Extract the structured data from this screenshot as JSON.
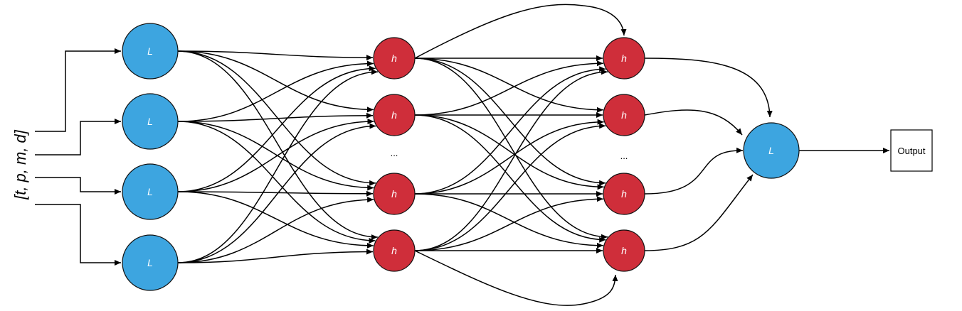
{
  "diagram": {
    "input_label": "[t, p, m, d]",
    "input_layer_node_label": "L",
    "hidden_layer_node_label": "h",
    "output_layer_node_label": "L",
    "ellipsis": "...",
    "output_box_label": "Output",
    "colors": {
      "blue_node": "#3da5e0",
      "red_node": "#cf2e3a",
      "edge": "#000000"
    }
  }
}
